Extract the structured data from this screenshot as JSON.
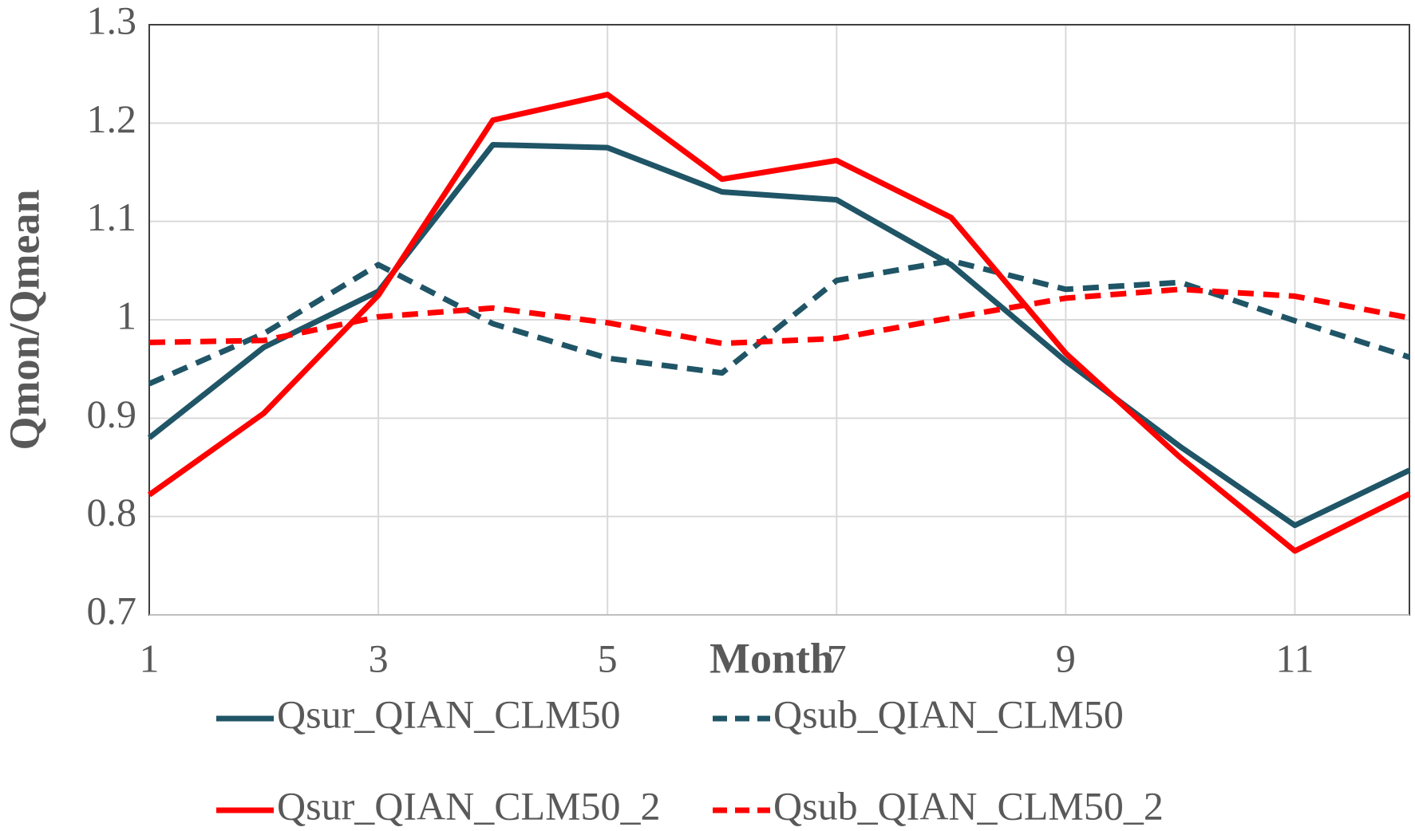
{
  "chart_data": {
    "type": "line",
    "x_label": "Month",
    "y_label": "Qmon/Qmean",
    "x": [
      1,
      2,
      3,
      4,
      5,
      6,
      7,
      8,
      9,
      10,
      11,
      12
    ],
    "xlim": [
      1,
      12
    ],
    "xticks": [
      1,
      3,
      5,
      7,
      9,
      11
    ],
    "ylim": [
      0.7,
      1.3
    ],
    "yticks": [
      0.7,
      0.8,
      0.9,
      1,
      1.1,
      1.2,
      1.3
    ],
    "grid": true,
    "legend": "bottom",
    "series": [
      {
        "name": "Qsur_QIAN_CLM50",
        "color": "#1f5566",
        "dashed": false,
        "values": [
          0.88,
          0.972,
          1.029,
          1.178,
          1.175,
          1.13,
          1.122,
          1.056,
          0.958,
          0.871,
          0.791,
          0.847
        ]
      },
      {
        "name": "Qsub_QIAN_CLM50",
        "color": "#1f5566",
        "dashed": true,
        "values": [
          0.935,
          0.986,
          1.056,
          0.996,
          0.961,
          0.946,
          1.04,
          1.06,
          1.031,
          1.038,
          0.999,
          0.962
        ]
      },
      {
        "name": "Qsur_QIAN_CLM50_2",
        "color": "#ff0000",
        "dashed": false,
        "values": [
          0.822,
          0.905,
          1.025,
          1.203,
          1.229,
          1.143,
          1.162,
          1.104,
          0.966,
          0.86,
          0.765,
          0.823
        ]
      },
      {
        "name": "Qsub_QIAN_CLM50_2",
        "color": "#ff0000",
        "dashed": true,
        "values": [
          0.977,
          0.979,
          1.003,
          1.012,
          0.997,
          0.976,
          0.981,
          1.002,
          1.022,
          1.031,
          1.024,
          1.002
        ]
      }
    ]
  }
}
